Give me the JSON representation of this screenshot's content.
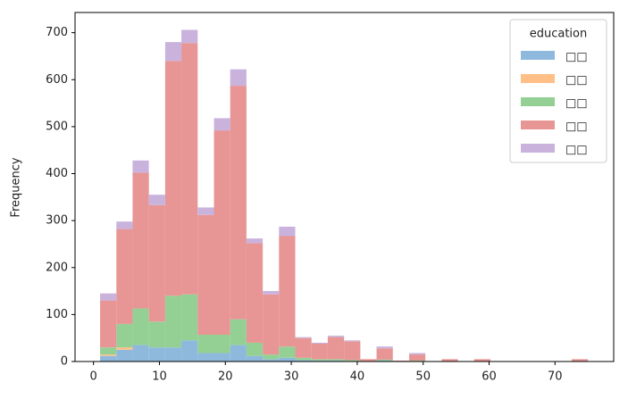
{
  "chart_data": {
    "type": "histogram",
    "stacked": true,
    "y_label": "Frequency",
    "legend_title": "education",
    "legend_position": "upper right",
    "bins": [
      1,
      3.47,
      5.93,
      8.4,
      10.87,
      13.33,
      15.8,
      18.27,
      20.73,
      23.2,
      25.67,
      28.13,
      30.6,
      33.07,
      35.53,
      38,
      40.47,
      42.93,
      45.4,
      47.87,
      50.33,
      52.8,
      55.27,
      57.73,
      60.2,
      62.67,
      65.13,
      67.6,
      70.07,
      72.53,
      75
    ],
    "series": [
      {
        "name": "□□",
        "color": "#8fb9dc",
        "values": [
          12,
          25,
          35,
          30,
          30,
          45,
          18,
          18,
          35,
          12,
          5,
          8,
          3,
          2,
          2,
          1,
          0,
          2,
          0,
          1,
          0,
          0,
          0,
          0,
          0,
          0,
          0,
          0,
          0,
          0
        ]
      },
      {
        "name": "□□",
        "color": "#ffbf86",
        "values": [
          3,
          5,
          0,
          0,
          0,
          0,
          0,
          0,
          0,
          0,
          0,
          0,
          0,
          0,
          0,
          0,
          0,
          0,
          0,
          0,
          0,
          0,
          0,
          0,
          0,
          0,
          0,
          0,
          0,
          0
        ]
      },
      {
        "name": "□□",
        "color": "#94d094",
        "values": [
          15,
          50,
          78,
          55,
          110,
          98,
          39,
          39,
          55,
          28,
          10,
          24,
          5,
          3,
          3,
          2,
          1,
          2,
          0,
          1,
          0,
          0,
          0,
          0,
          0,
          0,
          0,
          0,
          0,
          0
        ]
      },
      {
        "name": "□□",
        "color": "#e89595",
        "values": [
          100,
          202,
          289,
          248,
          500,
          535,
          255,
          435,
          497,
          212,
          128,
          235,
          42,
          33,
          47,
          40,
          4,
          24,
          2,
          13,
          1,
          5,
          0,
          5,
          0,
          0,
          0,
          0,
          0,
          5
        ]
      },
      {
        "name": "□□",
        "color": "#c9b3dd",
        "values": [
          15,
          16,
          26,
          22,
          40,
          28,
          16,
          26,
          35,
          10,
          7,
          20,
          2,
          2,
          3,
          2,
          0,
          4,
          0,
          3,
          0,
          0,
          0,
          0,
          0,
          0,
          0,
          0,
          0,
          0
        ]
      }
    ],
    "xlim": [
      -2.8,
      78.9
    ],
    "ylim": [
      0,
      743
    ],
    "xticks": [
      0,
      10,
      20,
      30,
      40,
      50,
      60,
      70
    ],
    "yticks": [
      0,
      100,
      200,
      300,
      400,
      500,
      600,
      700
    ]
  }
}
